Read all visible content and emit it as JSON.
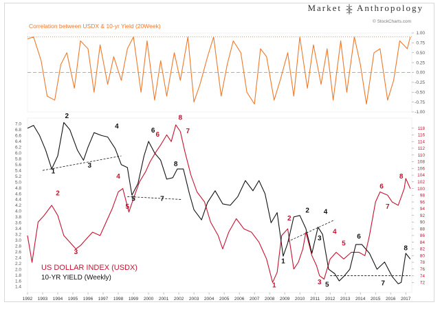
{
  "brand": {
    "left": "Market",
    "right": "Anthropology",
    "source": "© StockCharts.com"
  },
  "colors": {
    "corr": "#f07828",
    "usdx": "#c8102e",
    "yield": "#111111",
    "axis": "#555555",
    "grid": "#f07828"
  },
  "chart_data": [
    {
      "type": "line",
      "title": "Correlation between USDX & 10-yr Yield (20Week)",
      "ylim": [
        -1.0,
        1.0
      ],
      "yticks": [
        "1.00",
        "0.75",
        "0.50",
        "0.25",
        "0.00",
        "-0.25",
        "-0.50",
        "-0.75",
        "-1.00"
      ],
      "reference_lines": [
        0.9,
        0.0
      ],
      "series": [
        {
          "x": [
            1992.0,
            1992.4,
            1992.9,
            1993.3,
            1993.8,
            1994.2,
            1994.6,
            1995.1,
            1995.5,
            1996.0,
            1996.4,
            1996.8,
            1997.3,
            1997.7,
            1998.2,
            1998.6,
            1999.0,
            1999.5,
            1999.9,
            2000.4,
            2000.8,
            2001.2,
            2001.7,
            2002.1,
            2002.6,
            2003.0,
            2003.4,
            2003.9,
            2004.3,
            2004.8,
            2005.2,
            2005.6,
            2006.1,
            2006.5,
            2007.0,
            2007.4,
            2007.8,
            2008.3,
            2008.7,
            2009.2,
            2009.6,
            2010.0,
            2010.5,
            2010.9,
            2011.4,
            2011.8,
            2012.2,
            2012.7,
            2013.1,
            2013.6,
            2014.0,
            2014.4,
            2014.9,
            2015.3,
            2015.8,
            2016.2,
            2016.6,
            2017.1,
            2017.3
          ],
          "values": [
            0.85,
            0.9,
            0.3,
            -0.6,
            -0.7,
            0.2,
            0.5,
            -0.4,
            0.8,
            0.6,
            -0.5,
            0.7,
            -0.3,
            0.4,
            -0.2,
            0.6,
            0.9,
            -0.5,
            0.8,
            -0.7,
            0.3,
            -0.6,
            0.5,
            -0.2,
            0.9,
            -0.75,
            -0.3,
            0.4,
            0.9,
            -0.6,
            0.2,
            0.8,
            0.5,
            -0.5,
            -0.8,
            0.6,
            0.4,
            -0.7,
            -0.2,
            0.5,
            -0.6,
            0.9,
            -0.4,
            0.7,
            -0.3,
            0.6,
            -0.7,
            0.8,
            -0.5,
            0.9,
            0.2,
            -0.8,
            0.5,
            0.6,
            -0.7,
            -0.2,
            0.8,
            0.6,
            0.9
          ]
        }
      ]
    },
    {
      "type": "line",
      "xticks": [
        "1992",
        "1993",
        "1994",
        "1995",
        "1996",
        "1997",
        "1998",
        "1999",
        "2000",
        "2001",
        "2002",
        "2003",
        "2004",
        "2005",
        "2006",
        "2007",
        "2008",
        "2009",
        "2010",
        "2011",
        "2012",
        "2013",
        "2014",
        "2015",
        "2016",
        "2017"
      ],
      "xlim": [
        1992.0,
        2017.4
      ],
      "legend": [
        "US DOLLAR INDEX (USDX)",
        "10-YR YIELD (Weekly)"
      ],
      "left_axis": {
        "ylim": [
          1.2,
          7.2
        ],
        "ticks": [
          "7.0",
          "6.8",
          "6.6",
          "6.4",
          "6.2",
          "6.0",
          "5.8",
          "5.6",
          "5.4",
          "5.2",
          "5.0",
          "4.8",
          "4.6",
          "4.4",
          "4.2",
          "4.0",
          "3.8",
          "3.6",
          "3.4",
          "3.2",
          "3.0",
          "2.8",
          "2.6",
          "2.4",
          "2.2",
          "2.0",
          "1.8",
          "1.6",
          "1.4"
        ]
      },
      "right_axis": {
        "ylim": [
          69,
          121
        ],
        "ticks": [
          "118",
          "116",
          "114",
          "112",
          "110",
          "108",
          "106",
          "104",
          "102",
          "100",
          "98",
          "96",
          "94",
          "92",
          "90",
          "88",
          "86",
          "84",
          "82",
          "80",
          "78",
          "76",
          "74",
          "72"
        ]
      },
      "series": [
        {
          "name": "US DOLLAR INDEX (USDX)",
          "axis": "right",
          "x": [
            1992.0,
            1992.3,
            1992.7,
            1993.1,
            1993.6,
            1994.0,
            1994.4,
            1994.8,
            1995.2,
            1995.5,
            1995.9,
            1996.3,
            1996.8,
            1997.2,
            1997.6,
            1998.0,
            1998.3,
            1998.7,
            1999.0,
            1999.4,
            1999.8,
            2000.1,
            2000.5,
            2000.8,
            2001.2,
            2001.5,
            2001.8,
            2002.1,
            2002.4,
            2002.8,
            2003.2,
            2003.7,
            2004.1,
            2004.6,
            2004.9,
            2005.3,
            2005.8,
            2006.3,
            2006.8,
            2007.3,
            2007.8,
            2008.2,
            2008.5,
            2008.8,
            2009.2,
            2009.6,
            2009.9,
            2010.2,
            2010.4,
            2010.8,
            2011.1,
            2011.3,
            2011.6,
            2012.0,
            2012.4,
            2012.9,
            2013.4,
            2013.9,
            2014.3,
            2014.6,
            2015.0,
            2015.3,
            2015.8,
            2016.1,
            2016.5,
            2016.9,
            2017.0,
            2017.3
          ],
          "values": [
            86,
            78,
            90,
            92,
            95,
            92,
            86,
            84,
            82,
            83,
            85,
            87,
            86,
            90,
            94,
            99,
            100,
            93,
            97,
            102,
            105,
            108,
            111,
            113,
            116,
            114,
            119,
            117,
            111,
            104,
            99,
            96,
            90,
            86,
            82,
            87,
            91,
            88,
            87,
            84,
            79,
            72,
            75,
            86,
            88,
            76,
            78,
            82,
            87,
            80,
            77,
            74,
            73,
            79,
            81,
            79,
            81,
            81,
            80,
            86,
            96,
            99,
            98,
            96,
            95,
            100,
            103,
            100
          ]
        },
        {
          "name": "10-YR YIELD (Weekly)",
          "axis": "left",
          "x": [
            1992.0,
            1992.4,
            1992.8,
            1993.2,
            1993.6,
            1994.0,
            1994.4,
            1994.8,
            1995.3,
            1995.7,
            1996.0,
            1996.4,
            1996.9,
            1997.3,
            1997.8,
            1998.2,
            1998.6,
            1998.9,
            1999.3,
            1999.7,
            2000.0,
            2000.4,
            2000.8,
            2001.2,
            2001.6,
            2001.9,
            2002.3,
            2002.7,
            2003.0,
            2003.5,
            2003.9,
            2004.4,
            2004.9,
            2005.4,
            2005.9,
            2006.4,
            2006.9,
            2007.3,
            2007.7,
            2008.1,
            2008.5,
            2008.9,
            2009.2,
            2009.6,
            2010.0,
            2010.4,
            2010.8,
            2011.2,
            2011.5,
            2011.9,
            2012.3,
            2012.6,
            2012.9,
            2013.3,
            2013.7,
            2014.1,
            2014.6,
            2015.1,
            2015.6,
            2016.1,
            2016.5,
            2016.7,
            2017.0,
            2017.3
          ],
          "values": [
            6.85,
            6.95,
            6.6,
            6.1,
            5.45,
            5.9,
            7.05,
            6.8,
            6.1,
            5.75,
            6.2,
            6.7,
            6.6,
            6.55,
            6.15,
            5.6,
            5.5,
            4.55,
            4.95,
            5.9,
            6.4,
            6.0,
            5.75,
            5.1,
            5.15,
            5.45,
            5.45,
            4.6,
            4.05,
            3.7,
            4.3,
            4.7,
            4.25,
            4.2,
            4.5,
            5.05,
            4.7,
            5.05,
            4.6,
            3.6,
            3.95,
            2.45,
            2.9,
            3.8,
            3.85,
            3.4,
            2.55,
            3.45,
            3.2,
            2.0,
            1.85,
            1.6,
            1.75,
            2.0,
            2.85,
            2.85,
            2.55,
            2.0,
            2.25,
            1.75,
            1.5,
            1.55,
            2.55,
            2.35
          ]
        }
      ],
      "annotations": {
        "usdx": [
          "2",
          "3",
          "4",
          "5",
          "6",
          "7",
          "8",
          "1",
          "2",
          "3",
          "4",
          "5",
          "6",
          "7",
          "8"
        ],
        "yield": [
          "1",
          "2",
          "3",
          "4",
          "5",
          "6",
          "7",
          "8",
          "1",
          "2",
          "3",
          "4",
          "5",
          "6",
          "7",
          "8"
        ]
      }
    }
  ]
}
